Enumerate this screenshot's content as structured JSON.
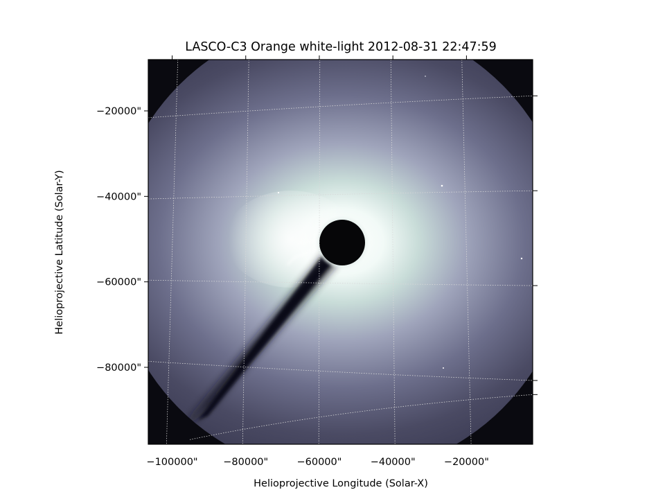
{
  "chart_data": {
    "type": "heatmap",
    "title": "LASCO-C3 Orange white-light 2012-08-31 22:47:59",
    "xlabel": "Helioprojective Longitude (Solar-X)",
    "ylabel": "Helioprojective Latitude (Solar-Y)",
    "x_ticks": [
      "−100000\"",
      "−80000\"",
      "−60000\"",
      "−40000\"",
      "−20000\""
    ],
    "y_ticks": [
      "−20000\"",
      "−40000\"",
      "−60000\"",
      "−80000\""
    ],
    "x_tick_values": [
      -100000,
      -80000,
      -60000,
      -40000,
      -20000
    ],
    "y_tick_values": [
      -20000,
      -40000,
      -60000,
      -80000
    ],
    "xlim": [
      -106500,
      -2000
    ],
    "ylim": [
      -98000,
      -8000
    ],
    "colormap": "bone",
    "grid": true,
    "occulter_center_arcsec": [
      -56000,
      -52000
    ],
    "colors": {
      "frame": "#000000",
      "grid": "#d8d8d8",
      "corona_bright": "#eef6f3",
      "corona_mid": "#8f90aa",
      "corona_dark": "#3b3b52",
      "background": "#0a0a10"
    }
  }
}
